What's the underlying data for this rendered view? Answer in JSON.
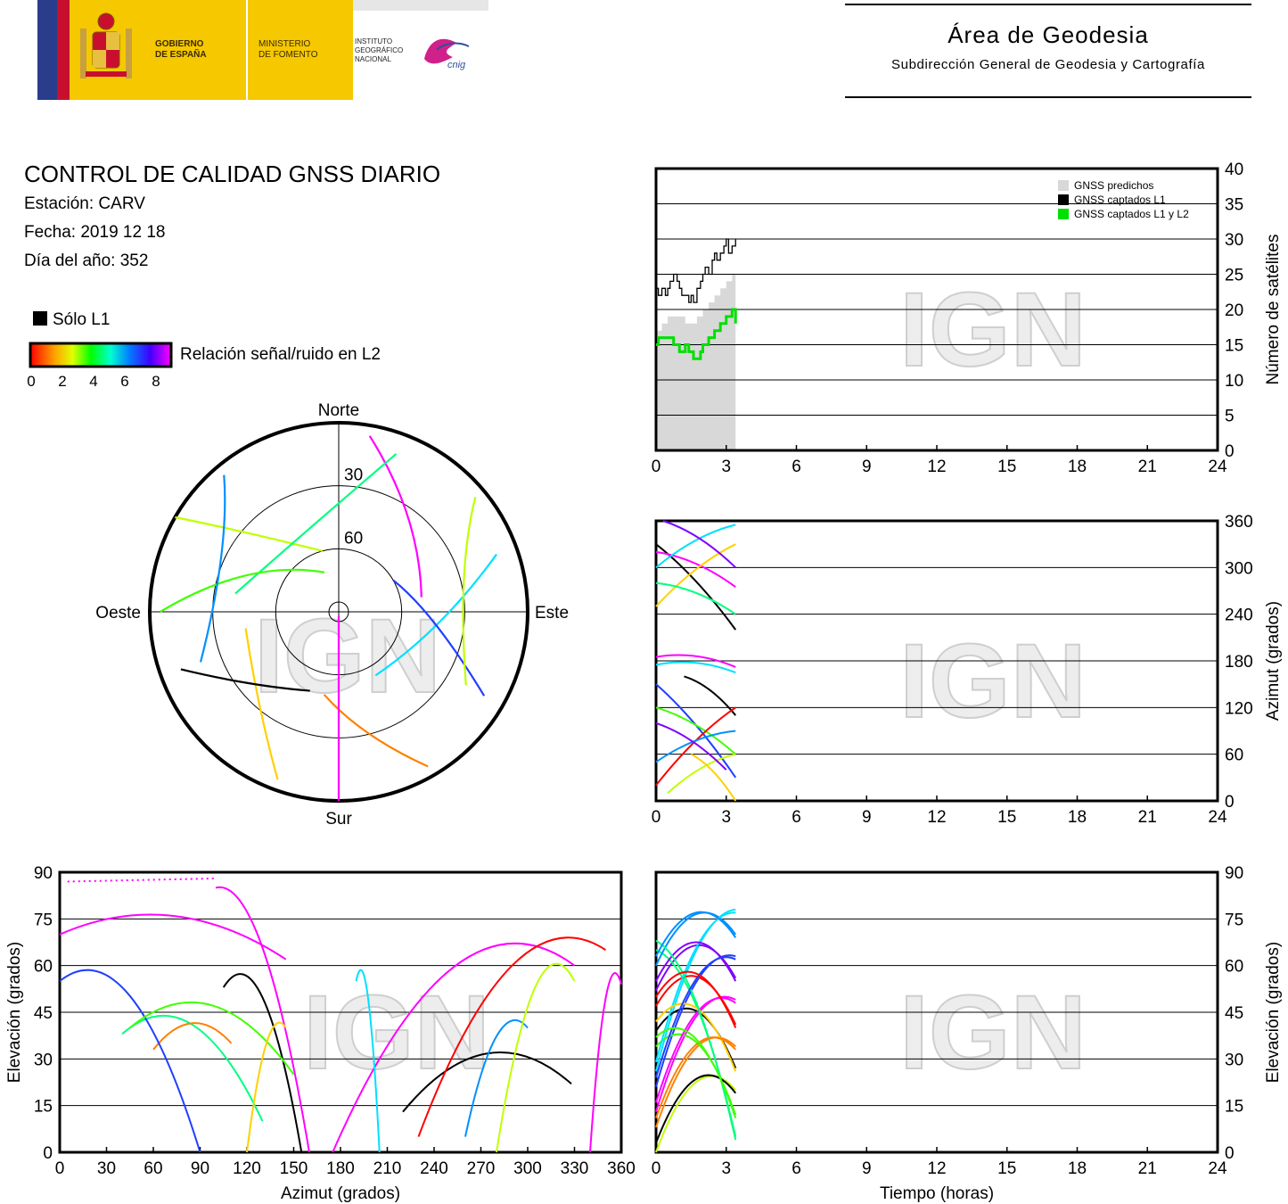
{
  "header": {
    "gobierno_line1": "GOBIERNO",
    "gobierno_line2": "DE ESPAÑA",
    "ministerio_line1": "MINISTERIO",
    "ministerio_line2": "DE FOMENTO",
    "instituto_line1": "INSTITUTO",
    "instituto_line2": "GEOGRÁFICO",
    "instituto_line3": "NACIONAL",
    "cnig_logo": "cnig",
    "area_title": "Área de Geodesia",
    "area_subtitle": "Subdirección General de Geodesia y Cartografía"
  },
  "report": {
    "title": "CONTROL DE CALIDAD GNSS DIARIO",
    "station": "Estación: CARV",
    "date": "Fecha: 2019 12 18",
    "doy": "Día del año: 352",
    "solo_l1": "Sólo L1",
    "colorbar_label": "Relación señal/ruido en L2",
    "colorbar_ticks": [
      "0",
      "2",
      "4",
      "6",
      "8"
    ]
  },
  "watermark": "IGN",
  "colors": {
    "predicted": "#d8d8d8",
    "l1": "#000000",
    "l1l2": "#00e000",
    "polar_track": "#ff00ff"
  },
  "chart_data": [
    {
      "id": "skyplot",
      "type": "scatter",
      "labels": {
        "north": "Norte",
        "south": "Sur",
        "east": "Este",
        "west": "Oeste"
      },
      "ring_labels": [
        "30",
        "60"
      ],
      "note": "polar sky plot of satellite tracks colored by L2 SNR"
    },
    {
      "id": "satellites",
      "type": "line",
      "ylabel": "Número de satélites",
      "xlim": [
        0,
        24
      ],
      "ylim": [
        0,
        40
      ],
      "xticks": [
        "0",
        "3",
        "6",
        "9",
        "12",
        "15",
        "18",
        "21",
        "24"
      ],
      "yticks": [
        "0",
        "5",
        "10",
        "15",
        "20",
        "25",
        "30",
        "35",
        "40"
      ],
      "legend": [
        "GNSS predichos",
        "GNSS captados L1",
        "GNSS captados L1 y L2"
      ],
      "legend_position": "top-right",
      "series": [
        {
          "name": "GNSS predichos",
          "x": [
            0,
            0.25,
            0.5,
            0.75,
            1.0,
            1.25,
            1.5,
            1.75,
            2.0,
            2.25,
            2.5,
            2.75,
            3.0,
            3.25,
            3.4
          ],
          "values": [
            17,
            18,
            19,
            19,
            19,
            18,
            18,
            19,
            20,
            21,
            22,
            23,
            24,
            25,
            25
          ]
        },
        {
          "name": "GNSS captados L1",
          "x": [
            0,
            0.1,
            0.25,
            0.4,
            0.5,
            0.6,
            0.75,
            0.9,
            1.0,
            1.1,
            1.25,
            1.4,
            1.5,
            1.6,
            1.75,
            1.9,
            2.0,
            2.1,
            2.25,
            2.4,
            2.5,
            2.6,
            2.75,
            2.9,
            3.0,
            3.1,
            3.25,
            3.4
          ],
          "values": [
            23,
            22,
            23,
            22,
            23,
            24,
            25,
            24,
            23,
            22,
            22,
            21,
            22,
            21,
            23,
            24,
            25,
            26,
            25,
            27,
            28,
            27,
            28,
            29,
            30,
            28,
            29,
            30
          ]
        },
        {
          "name": "GNSS captados L1 y L2",
          "x": [
            0,
            0.1,
            0.25,
            0.5,
            0.75,
            0.9,
            1.0,
            1.1,
            1.25,
            1.4,
            1.5,
            1.6,
            1.75,
            1.9,
            2.0,
            2.25,
            2.5,
            2.75,
            3.0,
            3.25,
            3.4
          ],
          "values": [
            15,
            16,
            16,
            16,
            15,
            15,
            14,
            14,
            15,
            14,
            14,
            13,
            13,
            14,
            15,
            16,
            17,
            18,
            19,
            20,
            18
          ]
        }
      ]
    },
    {
      "id": "azimuth-time",
      "type": "scatter",
      "ylabel": "Azimut (grados)",
      "xlim": [
        0,
        24
      ],
      "ylim": [
        0,
        360
      ],
      "xticks": [
        "0",
        "3",
        "6",
        "9",
        "12",
        "15",
        "18",
        "21",
        "24"
      ],
      "yticks": [
        "0",
        "60",
        "120",
        "180",
        "240",
        "300",
        "360"
      ]
    },
    {
      "id": "elevation-azimuth",
      "type": "scatter",
      "xlabel": "Azimut (grados)",
      "ylabel": "Elevación (grados)",
      "xlim": [
        0,
        360
      ],
      "ylim": [
        0,
        90
      ],
      "xticks": [
        "0",
        "30",
        "60",
        "90",
        "120",
        "150",
        "180",
        "210",
        "240",
        "270",
        "300",
        "330",
        "360"
      ],
      "yticks": [
        "0",
        "15",
        "30",
        "45",
        "60",
        "75",
        "90"
      ]
    },
    {
      "id": "elevation-time",
      "type": "scatter",
      "xlabel": "Tiempo (horas)",
      "ylabel": "Elevación (grados)",
      "xlim": [
        0,
        24
      ],
      "ylim": [
        0,
        90
      ],
      "xticks": [
        "0",
        "3",
        "6",
        "9",
        "12",
        "15",
        "18",
        "21",
        "24"
      ],
      "yticks": [
        "0",
        "15",
        "30",
        "45",
        "60",
        "75",
        "90"
      ]
    }
  ]
}
